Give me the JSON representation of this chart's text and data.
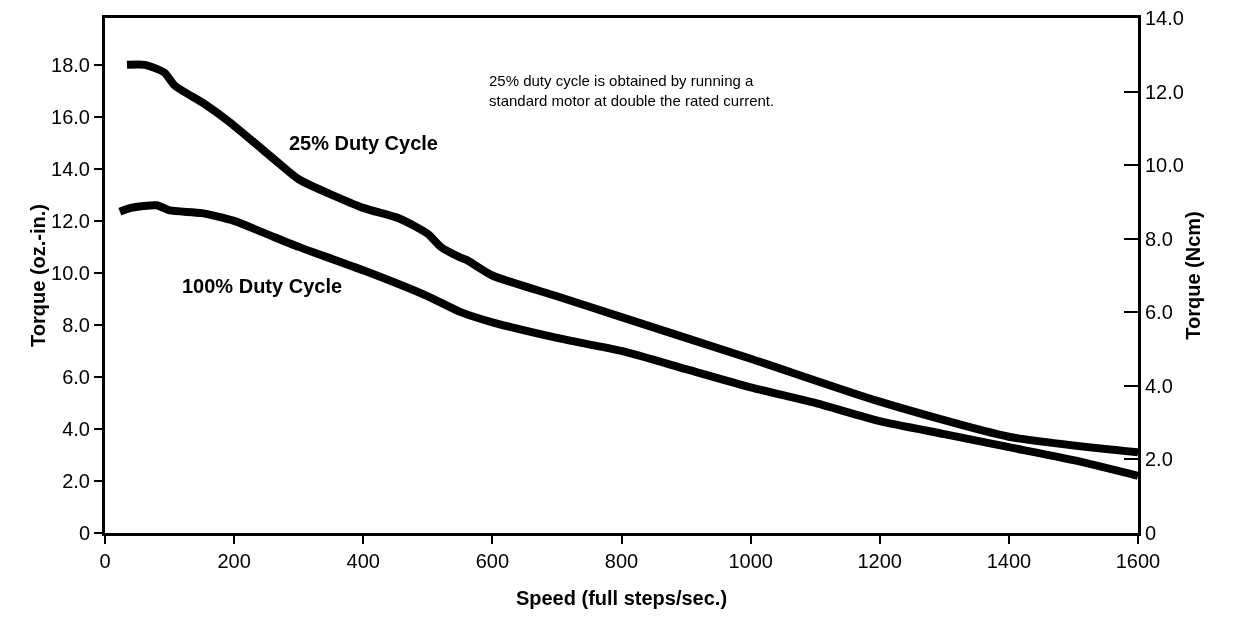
{
  "chart_data": {
    "type": "line",
    "xlabel": "Speed (full steps/sec.)",
    "ylabel": "Torque (oz.-in.)",
    "y2label": "Torque (Ncm)",
    "xlim": [
      0,
      1600
    ],
    "xticks": [
      0,
      200,
      400,
      600,
      800,
      1000,
      1200,
      1400,
      1600
    ],
    "ylim": [
      0,
      19.8
    ],
    "yticks": [
      0,
      {
        "value": 2,
        "label": "2.0"
      },
      {
        "value": 4,
        "label": "4.0"
      },
      {
        "value": 6,
        "label": "6.0"
      },
      {
        "value": 8,
        "label": "8.0"
      },
      {
        "value": 10,
        "label": "10.0"
      },
      {
        "value": 12,
        "label": "12.0"
      },
      {
        "value": 14,
        "label": "14.0"
      },
      {
        "value": 16,
        "label": "16.0"
      },
      {
        "value": 18,
        "label": "18.0"
      }
    ],
    "y2lim": [
      0,
      14
    ],
    "y2ticks": [
      0,
      {
        "value": 2,
        "label": "2.0"
      },
      {
        "value": 4,
        "label": "4.0"
      },
      {
        "value": 6,
        "label": "6.0"
      },
      {
        "value": 8,
        "label": "8.0"
      },
      {
        "value": 10,
        "label": "10.0"
      },
      {
        "value": 12,
        "label": "12.0"
      },
      {
        "value": 14,
        "label": "14.0"
      }
    ],
    "grid": false,
    "legend": false,
    "marker": "none",
    "line_style": "solid",
    "series": [
      {
        "name": "25% Duty Cycle",
        "color": "#000000",
        "x": [
          34,
          62,
          92,
          108,
          154,
          193,
          270,
          300,
          400,
          455,
          500,
          520,
          550,
          560,
          600,
          700,
          800,
          1000,
          1200,
          1400,
          1600
        ],
        "values": [
          18.0,
          18.0,
          17.7,
          17.2,
          16.5,
          15.8,
          14.2,
          13.6,
          12.5,
          12.1,
          11.5,
          11.0,
          10.6,
          10.5,
          9.9,
          9.1,
          8.3,
          6.7,
          5.05,
          3.7,
          3.1
        ]
      },
      {
        "name": "100% Duty Cycle",
        "color": "#000000",
        "x": [
          23,
          40,
          80,
          100,
          150,
          200,
          250,
          300,
          400,
          500,
          550,
          600,
          700,
          800,
          900,
          1000,
          1100,
          1200,
          1300,
          1400,
          1500,
          1600
        ],
        "values": [
          12.35,
          12.5,
          12.6,
          12.4,
          12.3,
          12.0,
          11.5,
          11.0,
          10.1,
          9.1,
          8.5,
          8.1,
          7.5,
          7.0,
          6.3,
          5.6,
          5.0,
          4.3,
          3.8,
          3.3,
          2.8,
          2.2
        ]
      }
    ],
    "annotations": [
      "25% duty cycle is obtained by running a standard motor at double the rated current."
    ]
  }
}
